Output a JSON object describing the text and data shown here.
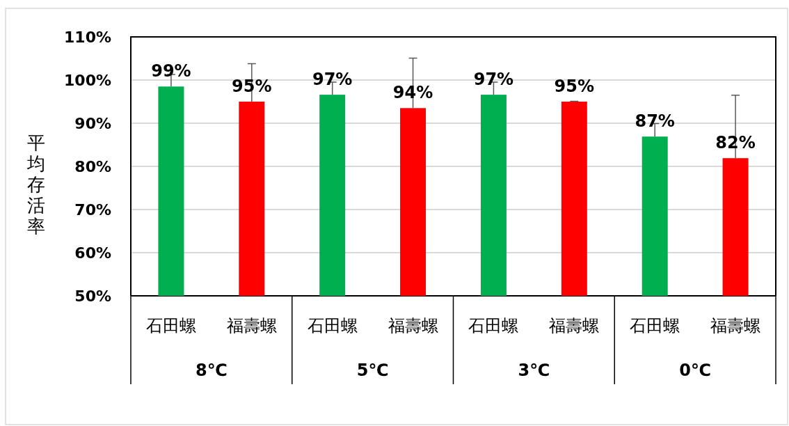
{
  "chart_data": {
    "type": "bar",
    "ylabel": "平均存活率",
    "categories": [
      "8℃",
      "5℃",
      "3℃",
      "0℃"
    ],
    "series": [
      {
        "name": "石田螺",
        "color": "#00b050",
        "values": [
          98.5,
          96.6,
          96.6,
          86.9
        ],
        "errors": [
          [
            98.5,
            101.3
          ],
          [
            96.6,
            99.5
          ],
          [
            96.6,
            99.5
          ],
          [
            86.9,
            89.9
          ]
        ],
        "value_labels": [
          "99%",
          "97%",
          "97%",
          "87%"
        ]
      },
      {
        "name": "福壽螺",
        "color": "#ff0000",
        "values": [
          95.0,
          93.5,
          95.0,
          81.9
        ],
        "errors": [
          [
            95.0,
            103.8
          ],
          [
            93.5,
            105.1
          ],
          [
            95.0,
            95.1
          ],
          [
            81.9,
            96.5
          ]
        ],
        "value_labels": [
          "95%",
          "94%",
          "95%",
          "82%"
        ]
      }
    ],
    "ylim": [
      50,
      110
    ],
    "yticks": [
      {
        "value": 50,
        "label": "50%"
      },
      {
        "value": 60,
        "label": "60%"
      },
      {
        "value": 70,
        "label": "70%"
      },
      {
        "value": 80,
        "label": "80%"
      },
      {
        "value": 90,
        "label": "90%"
      },
      {
        "value": 100,
        "label": "100%"
      },
      {
        "value": 110,
        "label": "110%"
      }
    ],
    "grid": "y"
  }
}
